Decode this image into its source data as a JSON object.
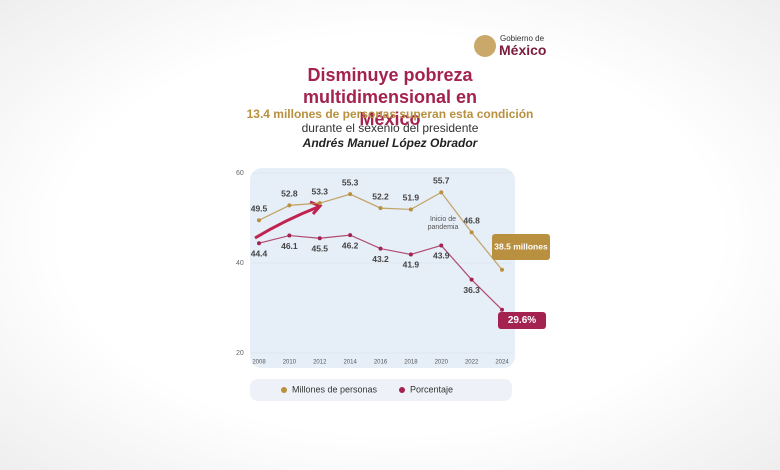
{
  "logo": {
    "line1": "Gobierno de",
    "line2": "México"
  },
  "chart_data": {
    "type": "line",
    "title": "Disminuye pobreza multidimensional en México",
    "subtitle": "13.4 millones de personas superan esta condición",
    "subtitle2": "durante el sexenio del presidente",
    "subtitle3": "Andrés Manuel López Obrador",
    "annotation": "Inicio de pandemia",
    "categories": [
      "2008",
      "2010",
      "2012",
      "2014",
      "2016",
      "2018",
      "2020",
      "2022",
      "2024"
    ],
    "series": [
      {
        "name": "Millones de personas",
        "color": "#b8903f",
        "values": [
          49.5,
          52.8,
          53.3,
          55.3,
          52.2,
          51.9,
          55.7,
          46.8,
          38.5
        ],
        "value_labels": [
          "49.5",
          "52.8",
          "53.3",
          "55.3",
          "52.2",
          "51.9",
          "55.7",
          "46.8",
          "38.5 millones"
        ]
      },
      {
        "name": "Porcentaje",
        "color": "#a3224f",
        "values": [
          44.4,
          46.1,
          45.5,
          46.2,
          43.2,
          41.9,
          43.9,
          36.3,
          29.6
        ],
        "value_labels": [
          "44.4",
          "46.1",
          "45.5",
          "46.2",
          "43.2",
          "41.9",
          "43.9",
          "36.3",
          "29.6%"
        ]
      }
    ],
    "ylim": [
      20,
      60
    ],
    "yticks": [
      20,
      40,
      60
    ],
    "grid": true,
    "legend": "bottom"
  }
}
